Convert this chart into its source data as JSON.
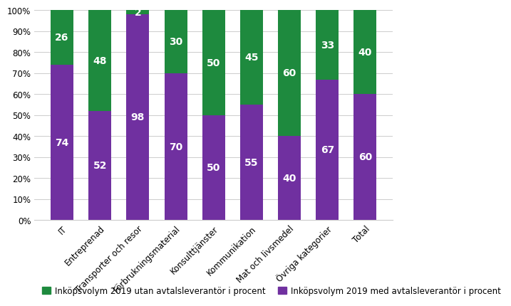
{
  "categories": [
    "IT",
    "Entreprenad",
    "Transporter och resor",
    "Förbrukningsmaterial",
    "Konsulttjänster",
    "Kommunikation",
    "Mat och livsmedel",
    "Övriga kategorier",
    "Total"
  ],
  "purple_values": [
    74,
    52,
    98,
    70,
    50,
    55,
    40,
    67,
    60
  ],
  "green_values": [
    26,
    48,
    2,
    30,
    50,
    45,
    60,
    33,
    40
  ],
  "purple_color": "#7030A0",
  "green_color": "#1E8A3E",
  "bar_width": 0.6,
  "ylim": [
    0,
    100
  ],
  "yticks": [
    0,
    10,
    20,
    30,
    40,
    50,
    60,
    70,
    80,
    90,
    100
  ],
  "ytick_labels": [
    "0%",
    "10%",
    "20%",
    "30%",
    "40%",
    "50%",
    "60%",
    "70%",
    "80%",
    "90%",
    "100%"
  ],
  "legend_green": "Inköpsvolym 2019 utan avtalsleverantör i procent",
  "legend_purple": "Inköpsvolym 2019 med avtalsleverantör i procent",
  "text_color": "#FFFFFF",
  "font_size_labels": 10,
  "font_size_ticks": 8.5,
  "font_size_legend": 8.5,
  "grid_color": "#cccccc"
}
